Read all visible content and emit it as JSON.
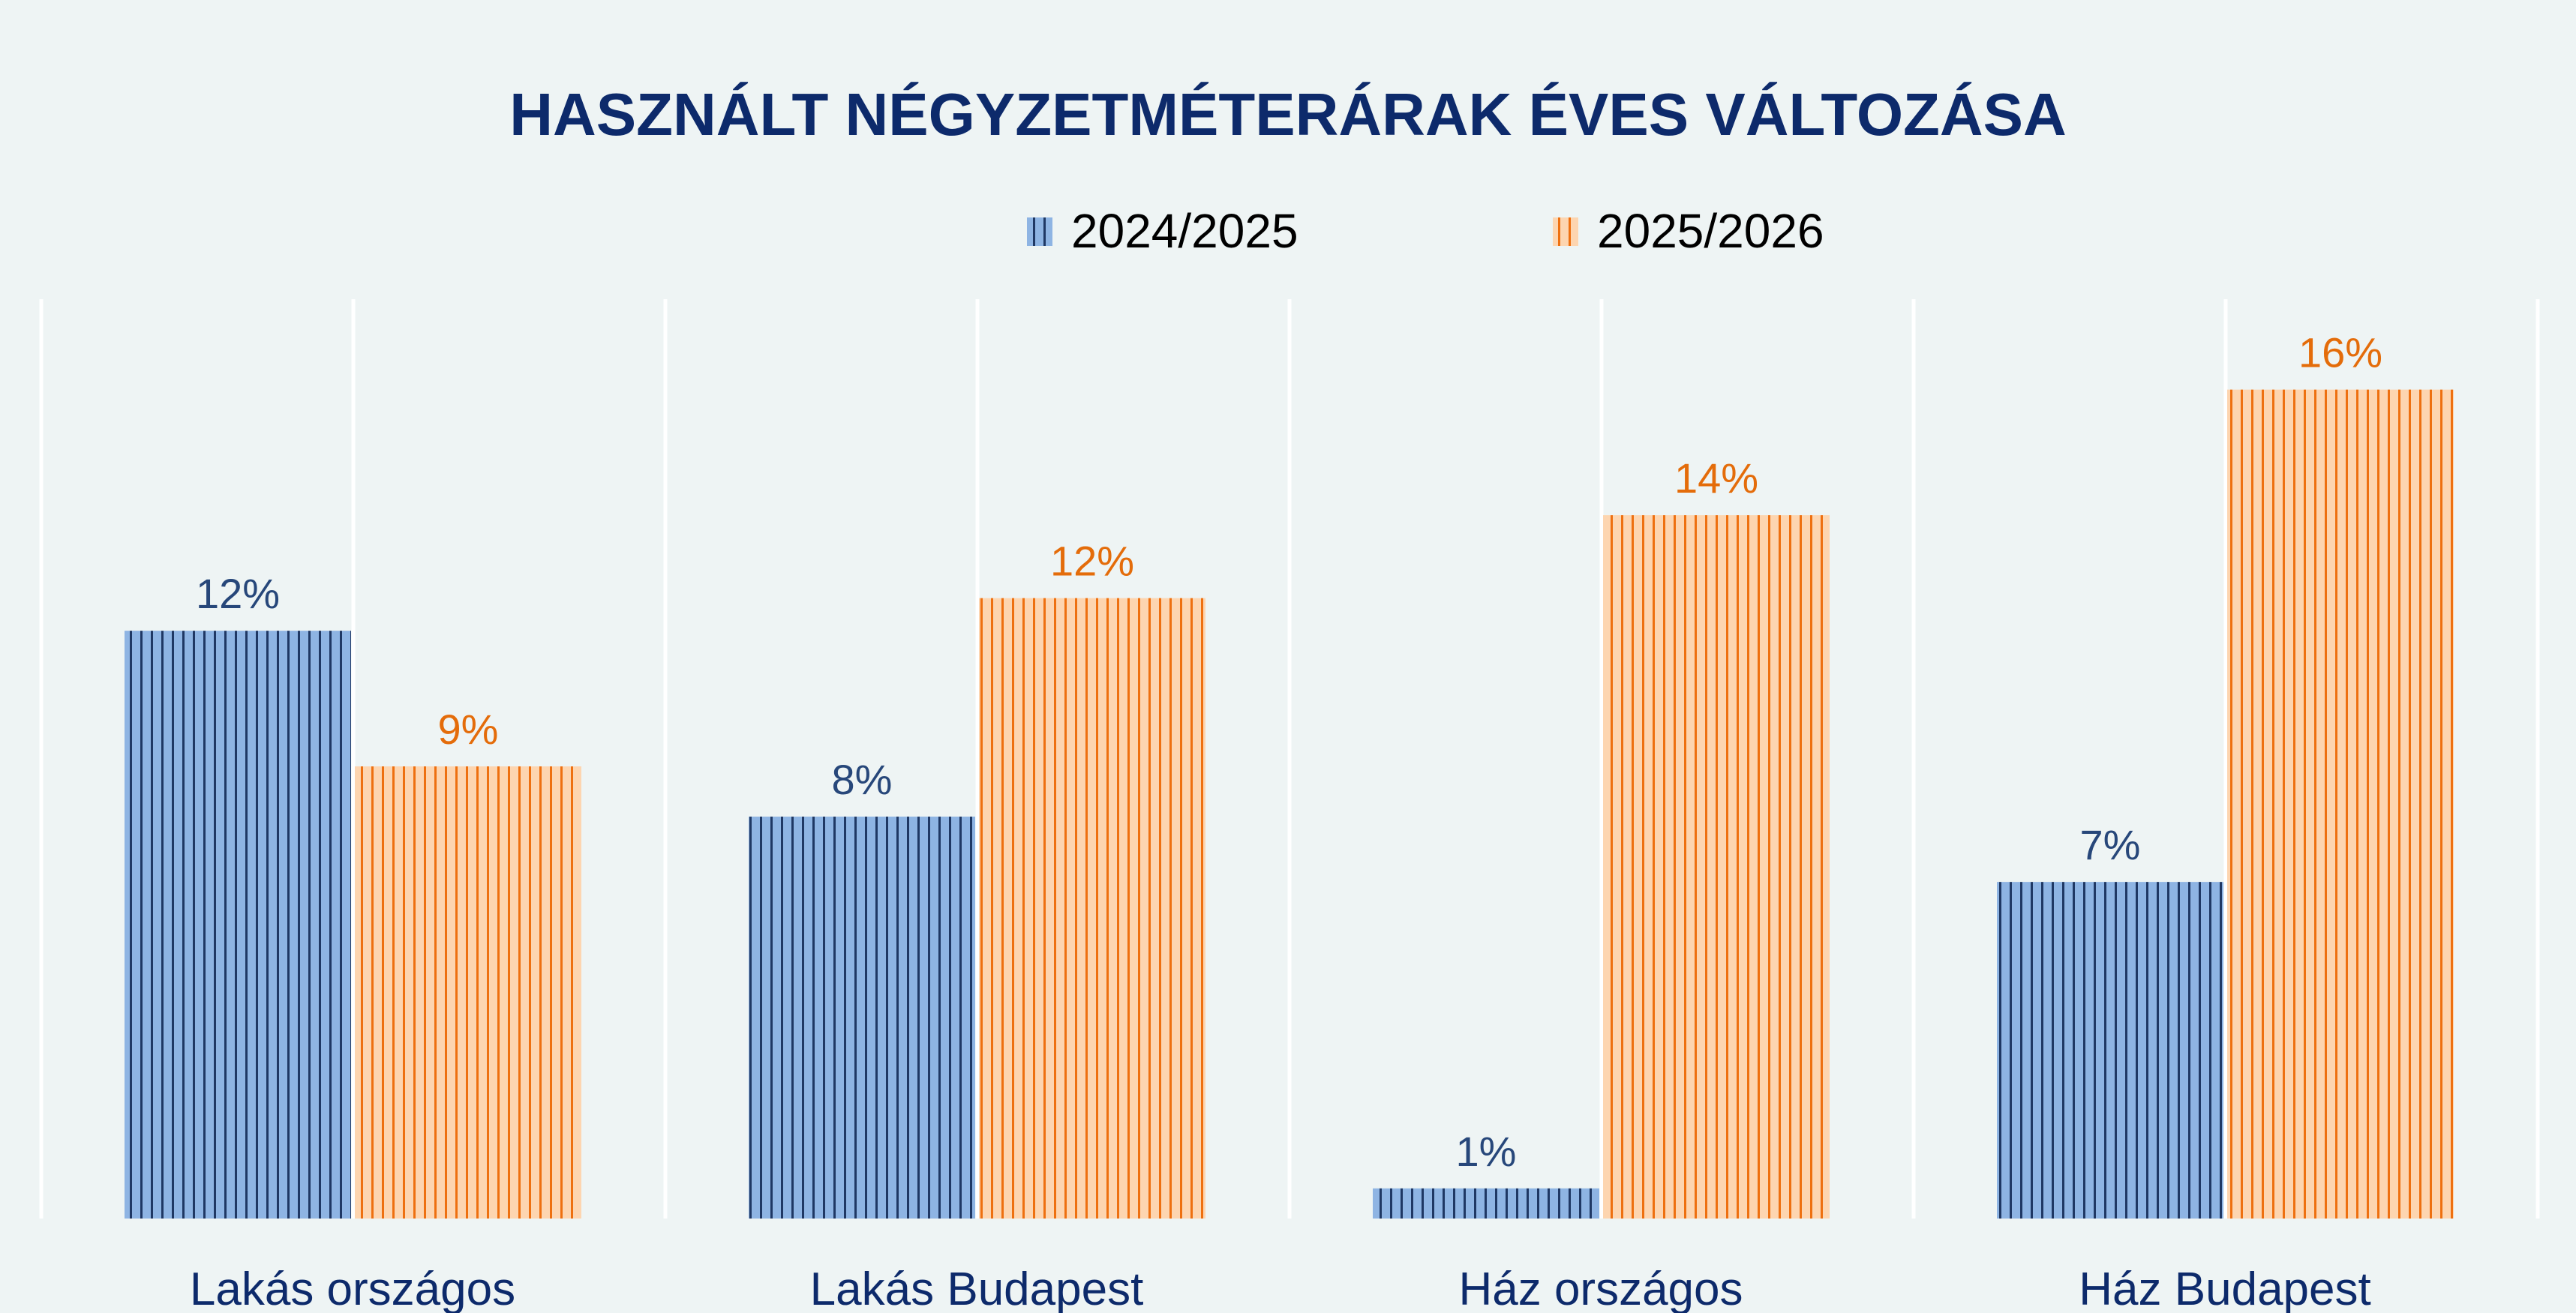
{
  "chart_data": {
    "type": "bar",
    "title": "HASZNÁLT NÉGYZETMÉTERÁRAK ÉVES VÁLTOZÁSA",
    "xlabel": "",
    "ylabel": "",
    "ylim": [
      0,
      18.3
    ],
    "grid": "vertical",
    "legend": "top-center",
    "categories": [
      "Lakás országos",
      "Lakás Budapest",
      "Ház országos",
      "Ház Budapest"
    ],
    "series": [
      {
        "name": "2024/2025",
        "values": [
          11.7,
          8.0,
          0.6,
          6.7
        ],
        "labels": [
          "12%",
          "8%",
          "1%",
          "7%"
        ],
        "fill": "#8EB4E3",
        "stripe": "#1F3864",
        "label_color": "#27477A"
      },
      {
        "name": "2025/2026",
        "values": [
          9.0,
          12.35,
          14.0,
          16.5
        ],
        "labels": [
          "9%",
          "12%",
          "14%",
          "16%"
        ],
        "fill": "#FDD5B0",
        "stripe": "#EE7010",
        "label_color": "#E46C0A"
      }
    ]
  }
}
